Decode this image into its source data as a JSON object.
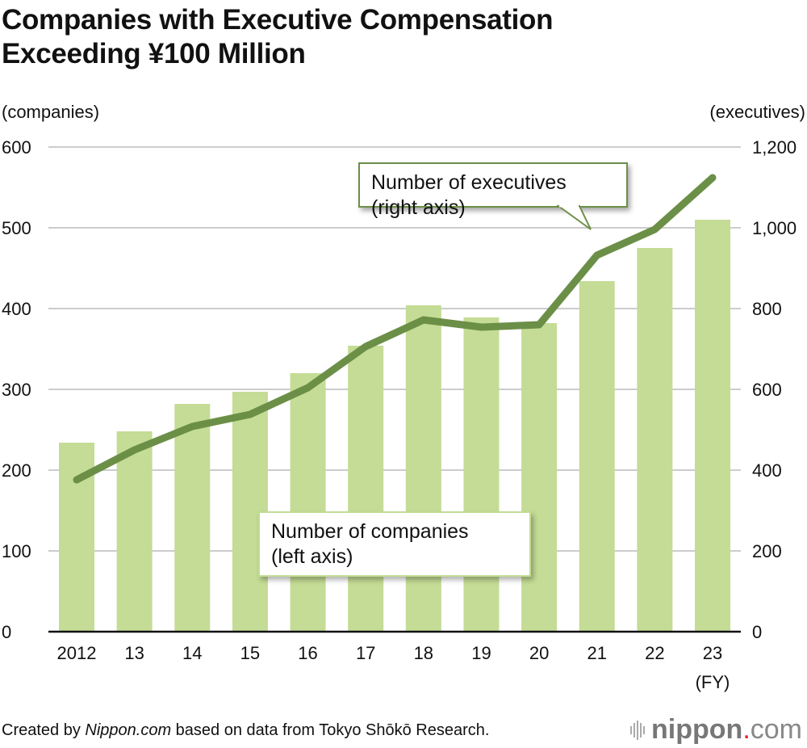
{
  "title_line1": "Companies with Executive Compensation",
  "title_line2": "Exceeding ¥100 Million",
  "left_unit": "(companies)",
  "right_unit": "(executives)",
  "fy_label": "(FY)",
  "callouts": {
    "executives_line1": "Number of executives",
    "executives_line2": "(right axis)",
    "companies_line1": "Number of companies",
    "companies_line2": "(left axis)"
  },
  "footer": {
    "prefix": "Created by ",
    "source_italic": "Nippon.com",
    "suffix": " based on data from Tokyo Shōkō Research."
  },
  "logo": {
    "name": "nippon",
    "dot": ".",
    "tld": "com"
  },
  "colors": {
    "bar": "#c4dc95",
    "line": "#6b8f47",
    "grid": "#cccccc",
    "axis": "#111111"
  },
  "chart_data": {
    "type": "bar",
    "title": "Companies with Executive Compensation Exceeding ¥100 Million",
    "categories": [
      "2012",
      "13",
      "14",
      "15",
      "16",
      "17",
      "18",
      "19",
      "20",
      "21",
      "22",
      "23"
    ],
    "xlabel": "(FY)",
    "ylabel": "(companies)",
    "ylabel_right": "(executives)",
    "ylim": [
      0,
      600
    ],
    "ylim_right": [
      0,
      1200
    ],
    "yticks": [
      "0",
      "100",
      "200",
      "300",
      "400",
      "500",
      "600"
    ],
    "yticks_right": [
      "0",
      "200",
      "400",
      "600",
      "800",
      "1,000",
      "1,200"
    ],
    "grid": true,
    "series": [
      {
        "name": "Number of companies (left axis)",
        "type": "bar",
        "axis": "left",
        "values": [
          234,
          248,
          282,
          297,
          320,
          354,
          404,
          389,
          382,
          434,
          475,
          510
        ]
      },
      {
        "name": "Number of executives (right axis)",
        "type": "line",
        "axis": "right",
        "values": [
          376,
          450,
          508,
          538,
          604,
          706,
          772,
          754,
          760,
          932,
          996,
          1124
        ]
      }
    ]
  }
}
